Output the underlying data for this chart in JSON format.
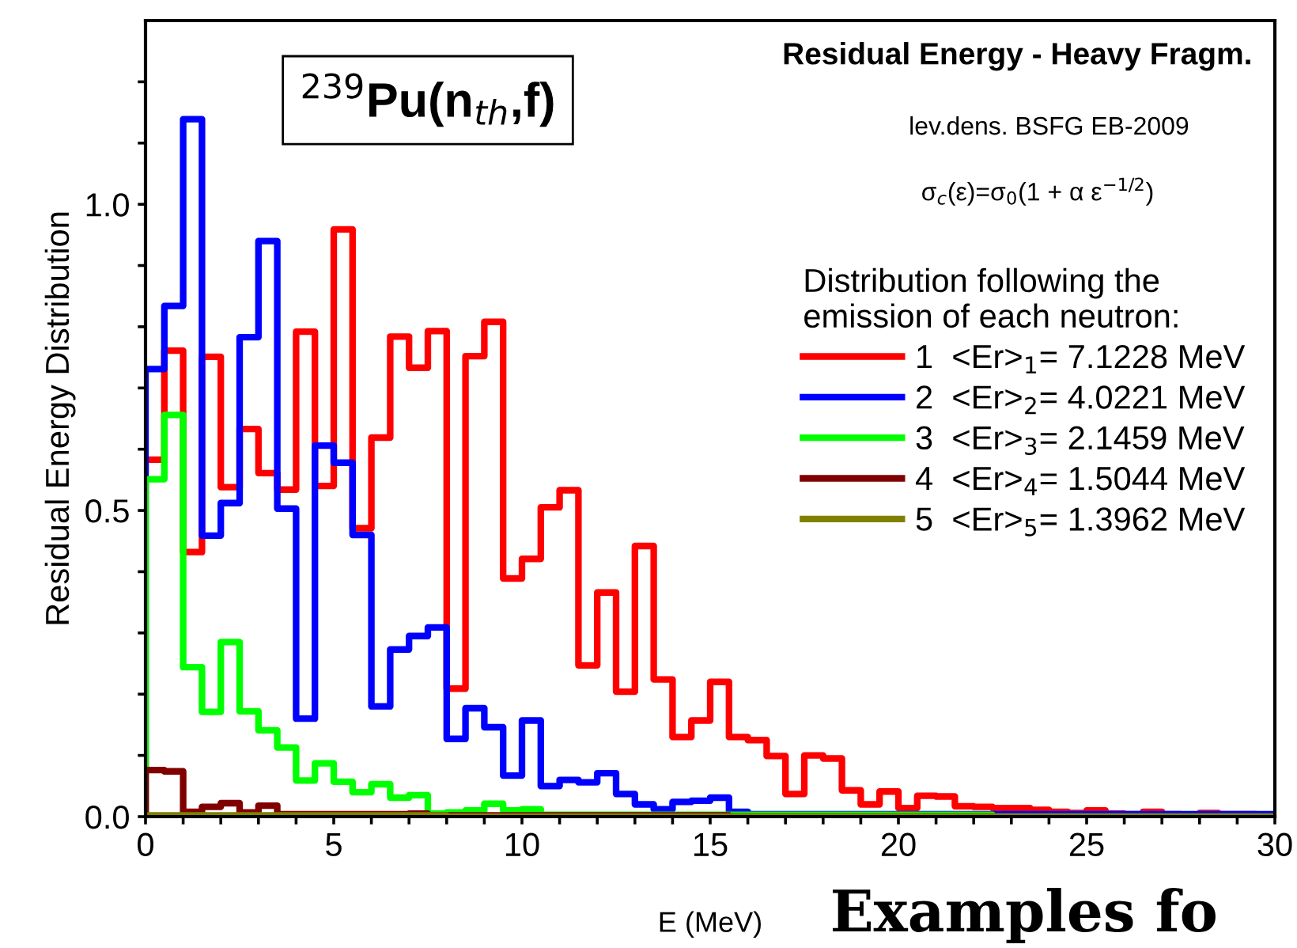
{
  "chart_data": {
    "type": "histogram",
    "title": "Residual Energy - Heavy Fragm.",
    "xlabel": "E (MeV)",
    "ylabel": "Residual Energy Distribution",
    "legend_title": "Distribution following the\nemission of each neutron:",
    "annotations": [
      "$^{239}$Pu(n$_{th}$,f)",
      "lev.dens. BSFG EB-2009",
      "σ$_{c}$(ε)=σ$_{0}$(1 + α ε$^{−1/2}$)",
      "Examples fo"
    ],
    "bins": [
      0,
      0.5,
      1,
      1.5,
      2,
      2.5,
      3,
      3.5,
      4,
      4.5,
      5,
      5.5,
      6,
      6.5,
      7,
      7.5,
      8,
      8.5,
      9,
      9.5,
      10,
      10.5,
      11,
      11.5,
      12,
      12.5,
      13,
      13.5,
      14,
      14.5,
      15,
      15.5,
      16,
      16.5,
      17,
      17.5,
      18,
      18.5,
      19,
      19.5,
      20,
      20.5,
      21,
      21.5,
      22,
      22.5,
      23,
      23.5,
      24,
      24.5,
      25,
      25.5,
      26,
      26.5,
      27,
      27.5,
      28,
      28.5,
      29,
      29.5,
      30
    ],
    "series": [
      {
        "name": "1  <Er>$_{1}$= 7.1228 MeV",
        "color": "#ff0000",
        "values": [
          0.583,
          0.761,
          0.432,
          0.751,
          0.538,
          0.633,
          0.561,
          0.534,
          0.792,
          0.54,
          0.959,
          0.471,
          0.619,
          0.784,
          0.733,
          0.793,
          0.209,
          0.752,
          0.808,
          0.389,
          0.421,
          0.505,
          0.533,
          0.247,
          0.366,
          0.204,
          0.442,
          0.224,
          0.13,
          0.157,
          0.22,
          0.13,
          0.125,
          0.099,
          0.037,
          0.1,
          0.095,
          0.043,
          0.02,
          0.041,
          0.014,
          0.034,
          0.033,
          0.017,
          0.016,
          0.014,
          0.014,
          0.011,
          0.008,
          0.006,
          0.01,
          0.005,
          0.004,
          0.008,
          0.004,
          0.003,
          0.006,
          0.004,
          0.004,
          0.003
        ]
      },
      {
        "name": "2  <Er>$_{2}$= 4.0221 MeV",
        "color": "#0000ff",
        "values": [
          0.731,
          0.834,
          1.139,
          0.459,
          0.512,
          0.783,
          0.94,
          0.503,
          0.16,
          0.606,
          0.578,
          0.46,
          0.18,
          0.273,
          0.295,
          0.309,
          0.127,
          0.177,
          0.146,
          0.067,
          0.157,
          0.05,
          0.06,
          0.056,
          0.071,
          0.037,
          0.02,
          0.012,
          0.024,
          0.026,
          0.031,
          0.008,
          0.004,
          0.004,
          0.004,
          0.004,
          0.004,
          0.004,
          0.004,
          0.004,
          0.004,
          0.004,
          0.004,
          0.004,
          0.004,
          0.004,
          0.004,
          0.004,
          0.004,
          0.004,
          0.004,
          0.004,
          0.004,
          0.004,
          0.004,
          0.004,
          0.004,
          0.004,
          0.004,
          0.004
        ]
      },
      {
        "name": "3  <Er>$_{3}$= 2.1459 MeV",
        "color": "#00ff00",
        "values": [
          0.551,
          0.656,
          0.244,
          0.171,
          0.285,
          0.172,
          0.141,
          0.113,
          0.059,
          0.087,
          0.057,
          0.04,
          0.053,
          0.031,
          0.035,
          0.005,
          0.007,
          0.01,
          0.021,
          0.01,
          0.012,
          0.003,
          0.003,
          0.003,
          0.003,
          0.003,
          0.003,
          0.003,
          0.003,
          0.003,
          0.003,
          0.003,
          0.003,
          0.003,
          0.003,
          0.003,
          0.003,
          0.003,
          0.003,
          0.003,
          0.003,
          0.003,
          0.003,
          0.003,
          0.003,
          0,
          0,
          0,
          0,
          0,
          0,
          0,
          0,
          0,
          0,
          0,
          0,
          0,
          0,
          0
        ]
      },
      {
        "name": "4  <Er>$_{4}$= 1.5044 MeV",
        "color": "#800000",
        "values": [
          0.076,
          0.074,
          0.008,
          0.016,
          0.022,
          0.007,
          0.018,
          0.004,
          0.004,
          0.004,
          0.004,
          0.004,
          0.004,
          0.004,
          0.005,
          0.002,
          0.002,
          0.002,
          0.002,
          0.002,
          0.002,
          0.002,
          0.002,
          0.002,
          0.002,
          0.002,
          0.002,
          0.002,
          0.002,
          0.002,
          0.002,
          0,
          0,
          0,
          0,
          0,
          0,
          0,
          0,
          0,
          0,
          0,
          0,
          0,
          0,
          0,
          0,
          0,
          0,
          0,
          0,
          0,
          0,
          0,
          0,
          0,
          0,
          0,
          0,
          0
        ]
      },
      {
        "name": "5  <Er>$_{5}$= 1.3962 MeV",
        "color": "#808000",
        "values": [
          0.002,
          0.002,
          0.002,
          0.002,
          0.002,
          0.002,
          0.002,
          0.002,
          0.002,
          0.002,
          0.002,
          0.002,
          0.002,
          0.002,
          0.002,
          0.002,
          0,
          0,
          0,
          0,
          0,
          0,
          0,
          0,
          0,
          0,
          0,
          0,
          0,
          0,
          0,
          0,
          0,
          0,
          0,
          0,
          0,
          0,
          0,
          0,
          0,
          0,
          0,
          0,
          0,
          0,
          0,
          0,
          0,
          0,
          0,
          0,
          0,
          0,
          0,
          0,
          0,
          0,
          0,
          0
        ]
      }
    ],
    "xlim": [
      0,
      30
    ],
    "xticks": [
      0,
      {
        "value": 1,
        "label": null
      },
      {
        "value": 2,
        "label": null
      },
      {
        "value": 3,
        "label": null
      },
      {
        "value": 4,
        "label": null
      },
      5,
      {
        "value": 6,
        "label": null
      },
      {
        "value": 7,
        "label": null
      },
      {
        "value": 8,
        "label": null
      },
      {
        "value": 9,
        "label": null
      },
      10,
      {
        "value": 11,
        "label": null
      },
      {
        "value": 12,
        "label": null
      },
      {
        "value": 13,
        "label": null
      },
      {
        "value": 14,
        "label": null
      },
      15,
      {
        "value": 16,
        "label": null
      },
      {
        "value": 17,
        "label": null
      },
      {
        "value": 18,
        "label": null
      },
      {
        "value": 19,
        "label": null
      },
      20,
      {
        "value": 21,
        "label": null
      },
      {
        "value": 22,
        "label": null
      },
      {
        "value": 23,
        "label": null
      },
      {
        "value": 24,
        "label": null
      },
      25,
      {
        "value": 26,
        "label": null
      },
      {
        "value": 27,
        "label": null
      },
      {
        "value": 28,
        "label": null
      },
      {
        "value": 29,
        "label": null
      },
      30
    ],
    "ylim": [
      0,
      1.3
    ],
    "yticks": [
      {
        "value": 0,
        "label": "0.0"
      },
      {
        "value": 0.1,
        "label": null
      },
      {
        "value": 0.2,
        "label": null
      },
      {
        "value": 0.3,
        "label": null
      },
      {
        "value": 0.4,
        "label": null
      },
      {
        "value": 0.5,
        "label": "0.5"
      },
      {
        "value": 0.6,
        "label": null
      },
      {
        "value": 0.7,
        "label": null
      },
      {
        "value": 0.8,
        "label": null
      },
      {
        "value": 0.9,
        "label": null
      },
      {
        "value": 1.0,
        "label": "1.0"
      },
      {
        "value": 1.1,
        "label": null
      },
      {
        "value": 1.2,
        "label": null
      }
    ],
    "grid": false,
    "legend": "right"
  }
}
